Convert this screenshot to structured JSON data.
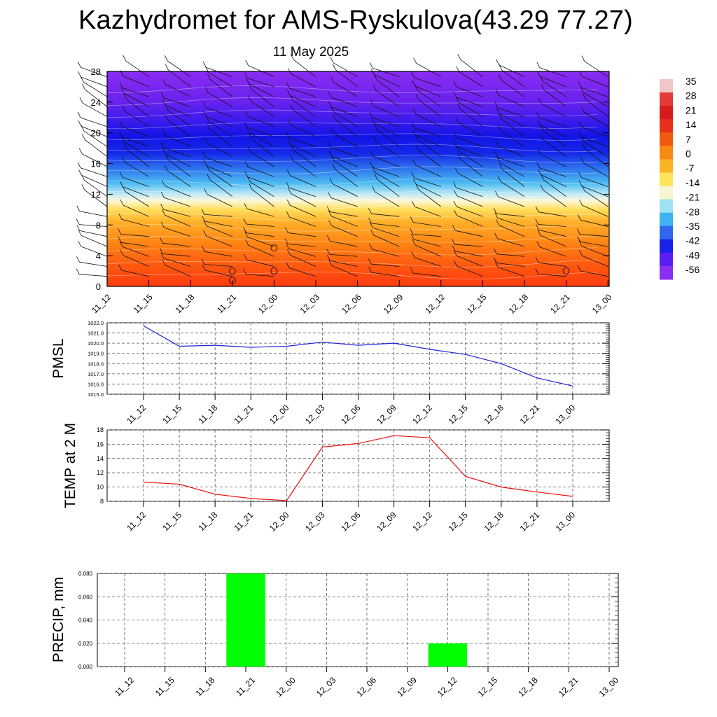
{
  "header": {
    "title": "Kazhydromet for AMS-Ryskulova(43.29 77.27)",
    "subtitle": "11 May 2025"
  },
  "colors": {
    "pmsl_line": "#2222dd",
    "temp_line": "#ee1111",
    "precip_bar": "#00ff00",
    "grid": "#555555"
  },
  "chart_data": [
    {
      "type": "heatmap",
      "name": "temperature-altitude-cross-section",
      "x_labels": [
        "11_12",
        "11_15",
        "11_18",
        "11_21",
        "12_00",
        "12_03",
        "12_06",
        "12_09",
        "12_12",
        "12_15",
        "12_18",
        "12_21",
        "13_00"
      ],
      "y_ticks": [
        "0",
        "4",
        "8",
        "12",
        "16",
        "20",
        "24",
        "28"
      ],
      "ylim": [
        0,
        28
      ],
      "colorbar_labels": [
        "35",
        "28",
        "21",
        "14",
        "7",
        "0",
        "-7",
        "-14",
        "-21",
        "-28",
        "-35",
        "-42",
        "-49",
        "-56"
      ],
      "colorbar_colors": [
        "#f2c6c6",
        "#e33a3a",
        "#d51b1b",
        "#e6301a",
        "#f05a10",
        "#f78a12",
        "#fbb424",
        "#fde35a",
        "#f6f5d0",
        "#9fe3f2",
        "#3fb2f0",
        "#2f66ee",
        "#1a22e8",
        "#5a1ef0",
        "#8a2ef2"
      ],
      "annotations": [
        "wind-barbs"
      ]
    },
    {
      "type": "line",
      "ylabel": "PMSL",
      "x": [
        "11_12",
        "11_15",
        "11_18",
        "11_21",
        "12_00",
        "12_03",
        "12_06",
        "12_09",
        "12_12",
        "12_15",
        "12_18",
        "12_21",
        "13_00"
      ],
      "values": [
        1021.7,
        1019.7,
        1019.8,
        1019.6,
        1019.7,
        1020.1,
        1019.8,
        1020.0,
        1019.4,
        1018.9,
        1018.0,
        1016.6,
        1015.8
      ],
      "ylim": [
        1015.0,
        1022.0
      ],
      "y_ticks": [
        "1015.0",
        "1016.0",
        "1017.0",
        "1018.0",
        "1019.0",
        "1020.0",
        "1021.0",
        "1022.0"
      ],
      "grid": true
    },
    {
      "type": "line",
      "ylabel": "TEMP at 2 M",
      "x": [
        "11_12",
        "11_15",
        "11_18",
        "11_21",
        "12_00",
        "12_03",
        "12_06",
        "12_09",
        "12_12",
        "12_15",
        "12_18",
        "12_21",
        "13_00"
      ],
      "values": [
        10.7,
        10.4,
        9.0,
        8.4,
        8.1,
        15.6,
        16.1,
        17.2,
        16.9,
        11.5,
        10.0,
        9.3,
        8.7
      ],
      "ylim": [
        8,
        18
      ],
      "y_ticks": [
        "8",
        "10",
        "12",
        "14",
        "16",
        "18"
      ],
      "grid": true
    },
    {
      "type": "bar",
      "ylabel": "PRECIP, mm",
      "categories": [
        "11_12",
        "11_15",
        "11_18",
        "11_21",
        "12_00",
        "12_03",
        "12_06",
        "12_09",
        "12_12",
        "12_15",
        "12_18",
        "12_21",
        "13_00"
      ],
      "values": [
        0,
        0,
        0,
        0.08,
        0,
        0,
        0,
        0,
        0.02,
        0,
        0,
        0,
        0
      ],
      "ylim": [
        0,
        0.08
      ],
      "y_ticks": [
        "0.000",
        "0.020",
        "0.040",
        "0.060",
        "0.080"
      ],
      "grid": true
    }
  ]
}
